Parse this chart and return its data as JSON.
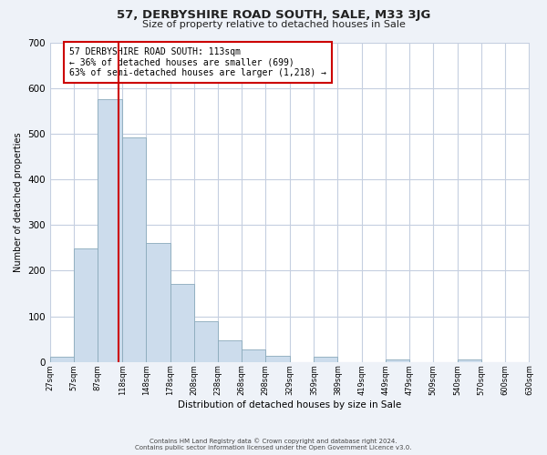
{
  "title": "57, DERBYSHIRE ROAD SOUTH, SALE, M33 3JG",
  "subtitle": "Size of property relative to detached houses in Sale",
  "xlabel": "Distribution of detached houses by size in Sale",
  "ylabel": "Number of detached properties",
  "footnote1": "Contains HM Land Registry data © Crown copyright and database right 2024.",
  "footnote2": "Contains public sector information licensed under the Open Government Licence v3.0.",
  "annotation_line1": "57 DERBYSHIRE ROAD SOUTH: 113sqm",
  "annotation_line2": "← 36% of detached houses are smaller (699)",
  "annotation_line3": "63% of semi-detached houses are larger (1,218) →",
  "bar_color": "#ccdcec",
  "bar_edge_color": "#8aaabb",
  "vline_x": 113,
  "vline_color": "#cc0000",
  "bin_edges": [
    27,
    57,
    87,
    118,
    148,
    178,
    208,
    238,
    268,
    298,
    329,
    359,
    389,
    419,
    449,
    479,
    509,
    540,
    570,
    600,
    630
  ],
  "bar_heights": [
    12,
    248,
    575,
    492,
    260,
    170,
    89,
    47,
    27,
    13,
    0,
    12,
    0,
    0,
    5,
    0,
    0,
    5,
    0,
    0
  ],
  "ylim": [
    0,
    700
  ],
  "yticks": [
    0,
    100,
    200,
    300,
    400,
    500,
    600,
    700
  ],
  "bg_color": "#eef2f8",
  "plot_bg_color": "#ffffff",
  "grid_color": "#c5cfe0"
}
